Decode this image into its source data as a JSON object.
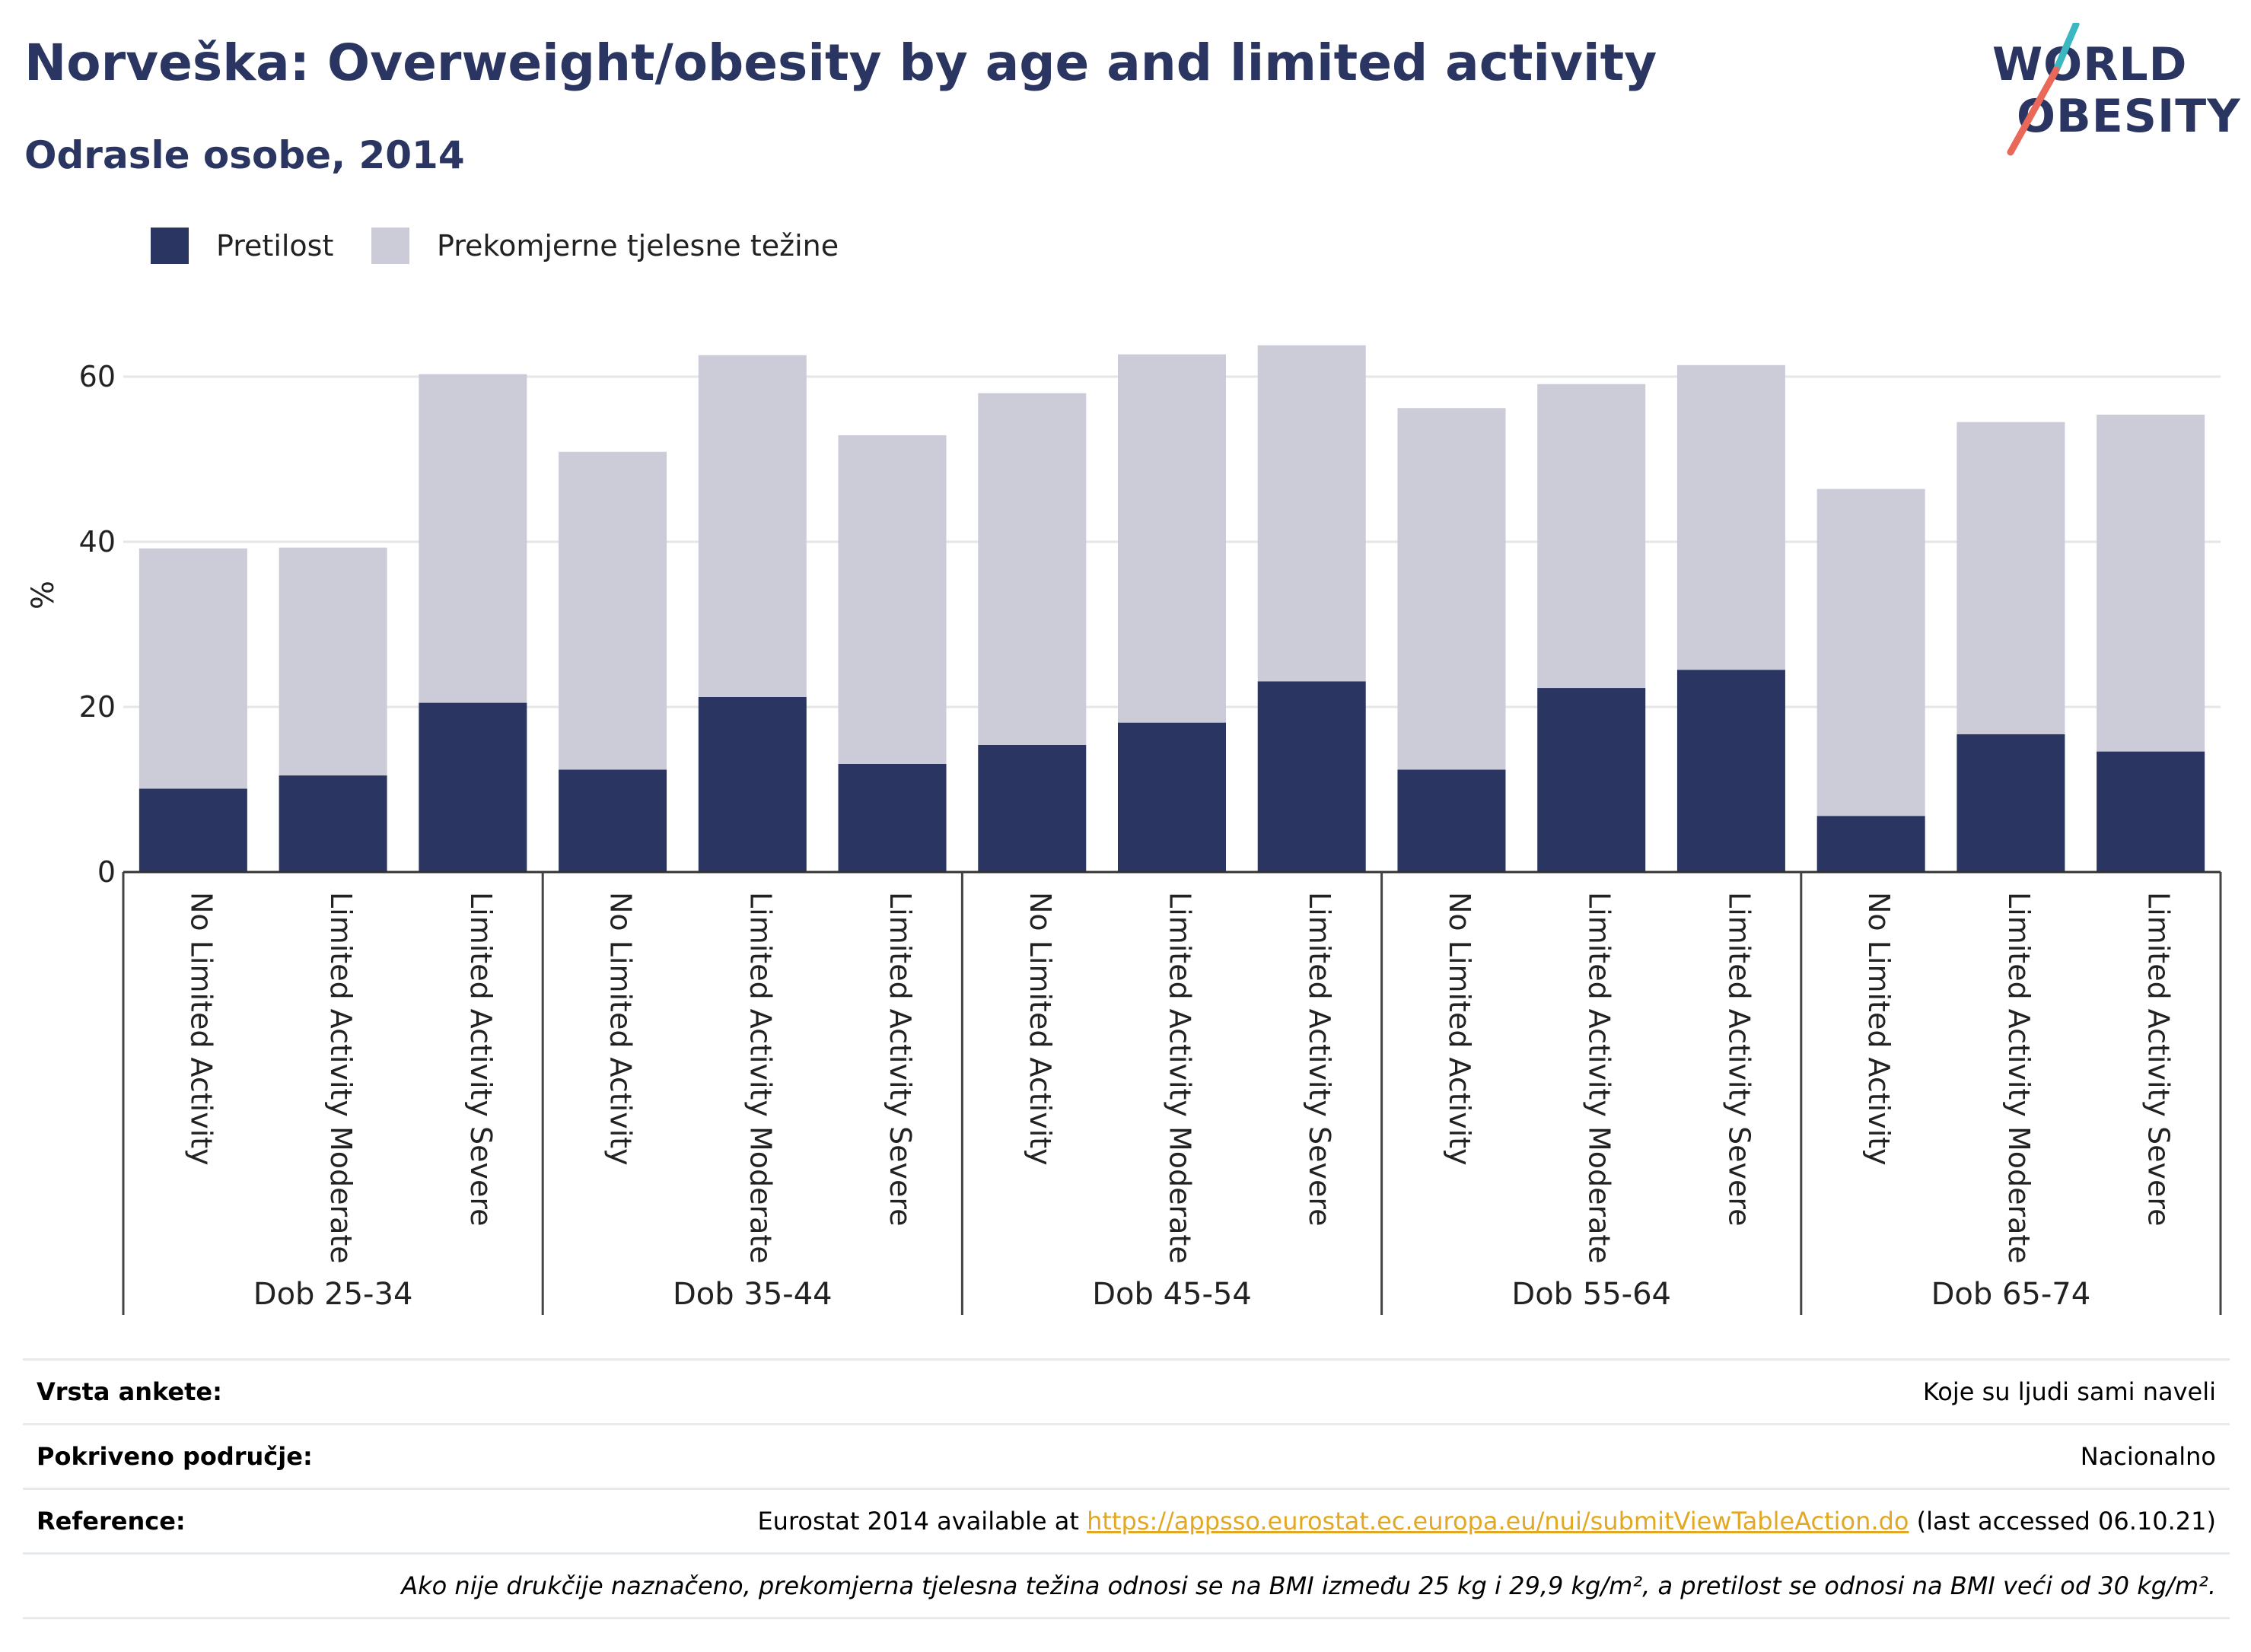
{
  "header": {
    "title": "Norveška: Overweight/obesity by age and limited activity",
    "subtitle": "Odrasle osobe, 2014"
  },
  "logo": {
    "line1": "WORLD",
    "line2": "OBESITY"
  },
  "colors": {
    "obesity": "#2a3661",
    "overweight": "#cbccd8",
    "accent_teal": "#3ab7c0",
    "accent_coral": "#e9685a",
    "link": "#e3a823"
  },
  "chart_data": {
    "type": "bar",
    "stacked": true,
    "ylabel": "%",
    "ylim": [
      0,
      70
    ],
    "yticks": [
      0,
      20,
      40,
      60
    ],
    "grid": true,
    "legend_position": "top-left",
    "groups": [
      "Dob 25-34",
      "Dob 35-44",
      "Dob 45-54",
      "Dob 55-64",
      "Dob 65-74"
    ],
    "categories": [
      "No Limited Activity",
      "Limited Activity Moderate",
      "Limited Activity Severe",
      "No Limited Activity",
      "Limited Activity Moderate",
      "Limited Activity Severe",
      "No Limited Activity",
      "Limited Activity Moderate",
      "Limited Activity Severe",
      "No Limited Activity",
      "Limited Activity Moderate",
      "Limited Activity Severe",
      "No Limited Activity",
      "Limited Activity Moderate",
      "Limited Activity Severe"
    ],
    "series": [
      {
        "name": "Pretilost",
        "values": [
          10.1,
          11.7,
          20.5,
          12.4,
          21.2,
          13.1,
          15.4,
          18.1,
          23.1,
          12.4,
          22.3,
          24.5,
          6.8,
          16.7,
          14.6
        ]
      },
      {
        "name": "Prekomjerne tjelesne težine",
        "values": [
          29.1,
          27.6,
          39.8,
          38.5,
          41.4,
          39.8,
          42.6,
          44.6,
          40.7,
          43.8,
          36.8,
          36.9,
          39.6,
          37.8,
          40.8
        ]
      }
    ]
  },
  "footer": {
    "survey_label": "Vrsta ankete:",
    "survey_value": "Koje su ljudi sami naveli",
    "area_label": "Pokriveno područje:",
    "area_value": "Nacionalno",
    "ref_label": "Reference:",
    "ref_prefix": "Eurostat 2014 available at ",
    "ref_link": "https://appsso.eurostat.ec.europa.eu/nui/submitViewTableAction.do",
    "ref_suffix": " (last accessed 06.10.21)",
    "note": "Ako nije drukčije naznačeno, prekomjerna tjelesna težina odnosi se na BMI između 25 kg i 29,9 kg/m², a pretilost se odnosi na BMI veći od 30 kg/m²."
  }
}
